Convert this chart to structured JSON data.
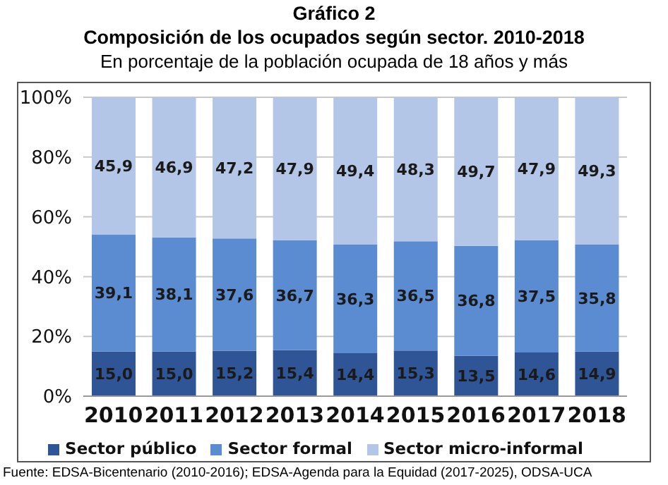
{
  "chart_data": {
    "type": "bar",
    "title": "Gráfico 2\nComposición de los ocupados según sector. 2010-2018",
    "subtitle": "En porcentaje de la población ocupada de 18 años y más",
    "categories": [
      "2010",
      "2011",
      "2012",
      "2013",
      "2014",
      "2015",
      "2016",
      "2017",
      "2018"
    ],
    "series": [
      {
        "name": "Sector público",
        "color": "#2f5597",
        "values": [
          15.0,
          15.0,
          15.2,
          15.4,
          14.4,
          15.3,
          13.5,
          14.6,
          14.9
        ],
        "value_labels": [
          "15,0",
          "15,0",
          "15,2",
          "15,4",
          "14,4",
          "15,3",
          "13,5",
          "14,6",
          "14,9"
        ]
      },
      {
        "name": "Sector formal",
        "color": "#5b8bd0",
        "values": [
          39.1,
          38.1,
          37.6,
          36.7,
          36.3,
          36.5,
          36.8,
          37.5,
          35.8
        ],
        "value_labels": [
          "39,1",
          "38,1",
          "37,6",
          "36,7",
          "36,3",
          "36,5",
          "36,8",
          "37,5",
          "35,8"
        ]
      },
      {
        "name": "Sector micro-informal",
        "color": "#b4c6e7",
        "values": [
          45.9,
          46.9,
          47.2,
          47.9,
          49.4,
          48.3,
          49.7,
          47.9,
          49.3
        ],
        "value_labels": [
          "45,9",
          "46,9",
          "47,2",
          "47,9",
          "49,4",
          "48,3",
          "49,7",
          "47,9",
          "49,3"
        ]
      }
    ],
    "stacked": true,
    "ylim": [
      0,
      100
    ],
    "yticks": [
      {
        "value": 0,
        "label": "0%"
      },
      {
        "value": 20,
        "label": "20%"
      },
      {
        "value": 40,
        "label": "40%"
      },
      {
        "value": 60,
        "label": "60%"
      },
      {
        "value": 80,
        "label": "80%"
      },
      {
        "value": 100,
        "label": "100%"
      }
    ],
    "grid": "y",
    "legend": "bottom",
    "annotations": [
      "Fuente: EDSA-Bicentenario (2010-2016); EDSA-Agenda para la Equidad (2017-2025), ODSA-UCA"
    ]
  }
}
